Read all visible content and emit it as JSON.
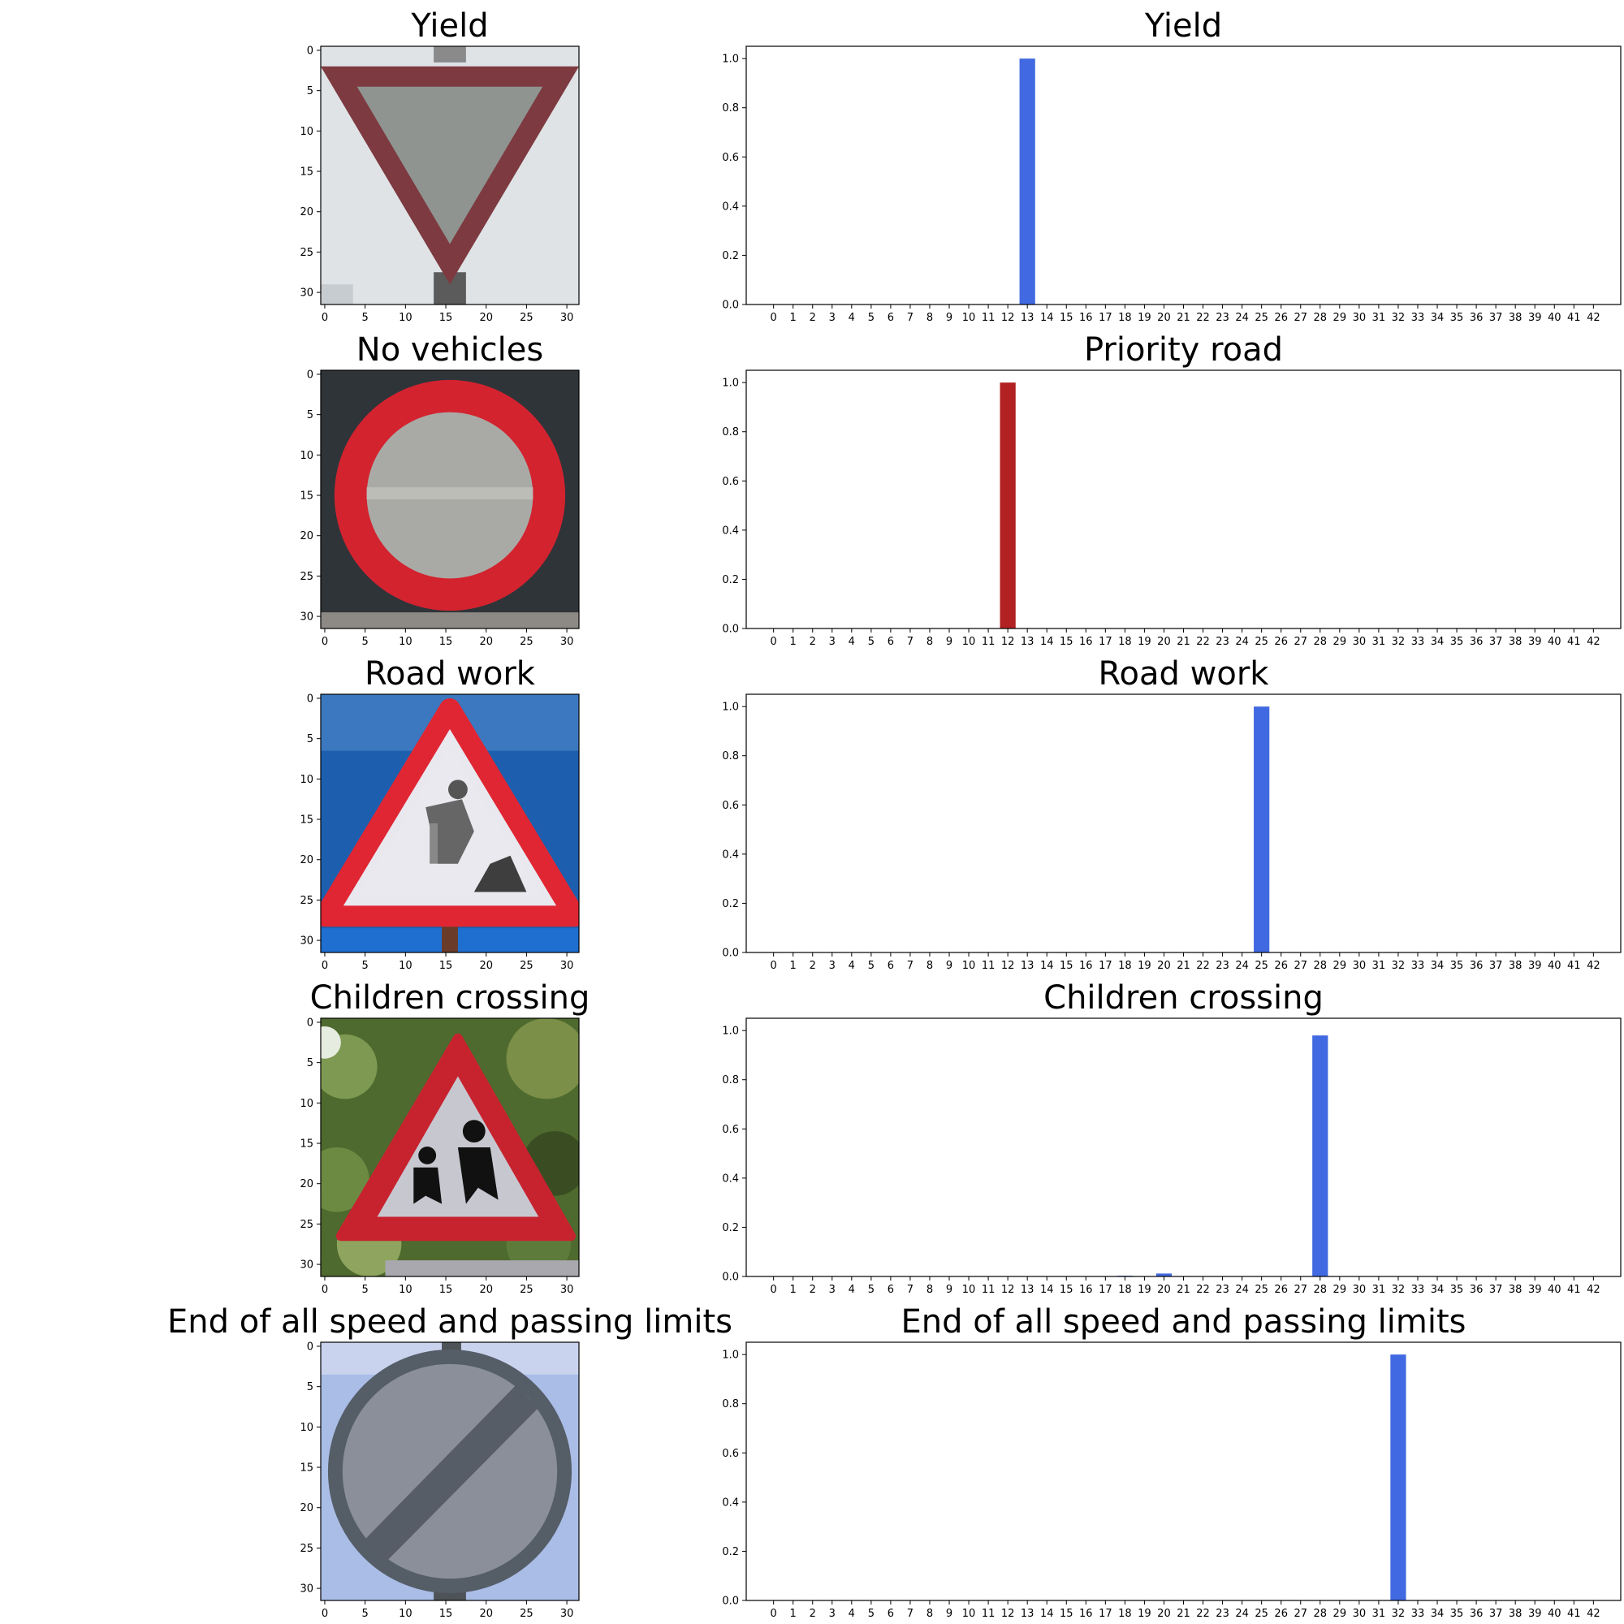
{
  "figure": {
    "panels": [
      {
        "image_title": "Yield",
        "image_kind": "yield-sign",
        "chart_title": "Yield",
        "bar_color": "#4169e1"
      },
      {
        "image_title": "No vehicles",
        "image_kind": "no-vehicles-sign",
        "chart_title": "Priority road",
        "bar_color": "#b22222"
      },
      {
        "image_title": "Road work",
        "image_kind": "road-work-sign",
        "chart_title": "Road work",
        "bar_color": "#4169e1"
      },
      {
        "image_title": "Children crossing",
        "image_kind": "children-crossing-sign",
        "chart_title": "Children crossing",
        "bar_color": "#4169e1"
      },
      {
        "image_title": "End of all speed and passing limits",
        "image_kind": "end-of-limits-sign",
        "chart_title": "End of all speed and passing limits",
        "bar_color": "#4169e1"
      }
    ],
    "image_axis": {
      "xticks": [
        "0",
        "5",
        "10",
        "15",
        "20",
        "25",
        "30"
      ],
      "yticks": [
        "0",
        "5",
        "10",
        "15",
        "20",
        "25",
        "30"
      ]
    }
  },
  "chart_data": [
    {
      "type": "bar",
      "title": "Yield",
      "categories": [
        "0",
        "1",
        "2",
        "3",
        "4",
        "5",
        "6",
        "7",
        "8",
        "9",
        "10",
        "11",
        "12",
        "13",
        "14",
        "15",
        "16",
        "17",
        "18",
        "19",
        "20",
        "21",
        "22",
        "23",
        "24",
        "25",
        "26",
        "27",
        "28",
        "29",
        "30",
        "31",
        "32",
        "33",
        "34",
        "35",
        "36",
        "37",
        "38",
        "39",
        "40",
        "41",
        "42"
      ],
      "values": [
        0,
        0,
        0,
        0,
        0,
        0,
        0,
        0,
        0,
        0,
        0,
        0,
        0,
        1.0,
        0,
        0,
        0,
        0,
        0,
        0,
        0,
        0,
        0,
        0,
        0,
        0,
        0,
        0,
        0,
        0,
        0,
        0,
        0,
        0,
        0,
        0,
        0,
        0,
        0,
        0,
        0,
        0,
        0
      ],
      "yticks": [
        "0.0",
        "0.2",
        "0.4",
        "0.6",
        "0.8",
        "1.0"
      ],
      "ylim": [
        0,
        1.05
      ],
      "color": "#4169e1"
    },
    {
      "type": "bar",
      "title": "Priority road",
      "categories": [
        "0",
        "1",
        "2",
        "3",
        "4",
        "5",
        "6",
        "7",
        "8",
        "9",
        "10",
        "11",
        "12",
        "13",
        "14",
        "15",
        "16",
        "17",
        "18",
        "19",
        "20",
        "21",
        "22",
        "23",
        "24",
        "25",
        "26",
        "27",
        "28",
        "29",
        "30",
        "31",
        "32",
        "33",
        "34",
        "35",
        "36",
        "37",
        "38",
        "39",
        "40",
        "41",
        "42"
      ],
      "values": [
        0,
        0,
        0,
        0,
        0,
        0,
        0,
        0,
        0,
        0,
        0,
        0,
        1.0,
        0,
        0,
        0,
        0,
        0,
        0,
        0,
        0,
        0,
        0,
        0,
        0,
        0,
        0,
        0,
        0,
        0,
        0,
        0,
        0,
        0,
        0,
        0,
        0,
        0,
        0,
        0,
        0,
        0,
        0
      ],
      "yticks": [
        "0.0",
        "0.2",
        "0.4",
        "0.6",
        "0.8",
        "1.0"
      ],
      "ylim": [
        0,
        1.05
      ],
      "color": "#b22222"
    },
    {
      "type": "bar",
      "title": "Road work",
      "categories": [
        "0",
        "1",
        "2",
        "3",
        "4",
        "5",
        "6",
        "7",
        "8",
        "9",
        "10",
        "11",
        "12",
        "13",
        "14",
        "15",
        "16",
        "17",
        "18",
        "19",
        "20",
        "21",
        "22",
        "23",
        "24",
        "25",
        "26",
        "27",
        "28",
        "29",
        "30",
        "31",
        "32",
        "33",
        "34",
        "35",
        "36",
        "37",
        "38",
        "39",
        "40",
        "41",
        "42"
      ],
      "values": [
        0,
        0,
        0,
        0,
        0,
        0,
        0,
        0,
        0,
        0,
        0,
        0,
        0,
        0,
        0,
        0,
        0,
        0,
        0,
        0,
        0,
        0,
        0,
        0,
        0,
        1.0,
        0,
        0,
        0,
        0,
        0,
        0,
        0,
        0,
        0,
        0,
        0,
        0,
        0,
        0,
        0,
        0,
        0
      ],
      "yticks": [
        "0.0",
        "0.2",
        "0.4",
        "0.6",
        "0.8",
        "1.0"
      ],
      "ylim": [
        0,
        1.05
      ],
      "color": "#4169e1"
    },
    {
      "type": "bar",
      "title": "Children crossing",
      "categories": [
        "0",
        "1",
        "2",
        "3",
        "4",
        "5",
        "6",
        "7",
        "8",
        "9",
        "10",
        "11",
        "12",
        "13",
        "14",
        "15",
        "16",
        "17",
        "18",
        "19",
        "20",
        "21",
        "22",
        "23",
        "24",
        "25",
        "26",
        "27",
        "28",
        "29",
        "30",
        "31",
        "32",
        "33",
        "34",
        "35",
        "36",
        "37",
        "38",
        "39",
        "40",
        "41",
        "42"
      ],
      "values": [
        0,
        0,
        0,
        0,
        0,
        0,
        0,
        0,
        0,
        0,
        0,
        0,
        0,
        0,
        0,
        0,
        0,
        0,
        0.003,
        0,
        0.012,
        0,
        0,
        0,
        0,
        0,
        0,
        0,
        0.98,
        0,
        0,
        0,
        0,
        0,
        0,
        0,
        0,
        0,
        0,
        0,
        0,
        0,
        0
      ],
      "yticks": [
        "0.0",
        "0.2",
        "0.4",
        "0.6",
        "0.8",
        "1.0"
      ],
      "ylim": [
        0,
        1.05
      ],
      "color": "#4169e1"
    },
    {
      "type": "bar",
      "title": "End of all speed and passing limits",
      "categories": [
        "0",
        "1",
        "2",
        "3",
        "4",
        "5",
        "6",
        "7",
        "8",
        "9",
        "10",
        "11",
        "12",
        "13",
        "14",
        "15",
        "16",
        "17",
        "18",
        "19",
        "20",
        "21",
        "22",
        "23",
        "24",
        "25",
        "26",
        "27",
        "28",
        "29",
        "30",
        "31",
        "32",
        "33",
        "34",
        "35",
        "36",
        "37",
        "38",
        "39",
        "40",
        "41",
        "42"
      ],
      "values": [
        0,
        0,
        0,
        0,
        0,
        0,
        0,
        0,
        0,
        0,
        0,
        0,
        0,
        0,
        0,
        0,
        0,
        0,
        0,
        0,
        0,
        0,
        0,
        0,
        0,
        0,
        0,
        0,
        0,
        0,
        0,
        0,
        1.0,
        0,
        0,
        0,
        0,
        0,
        0,
        0,
        0,
        0,
        0
      ],
      "yticks": [
        "0.0",
        "0.2",
        "0.4",
        "0.6",
        "0.8",
        "1.0"
      ],
      "ylim": [
        0,
        1.05
      ],
      "color": "#4169e1"
    }
  ]
}
